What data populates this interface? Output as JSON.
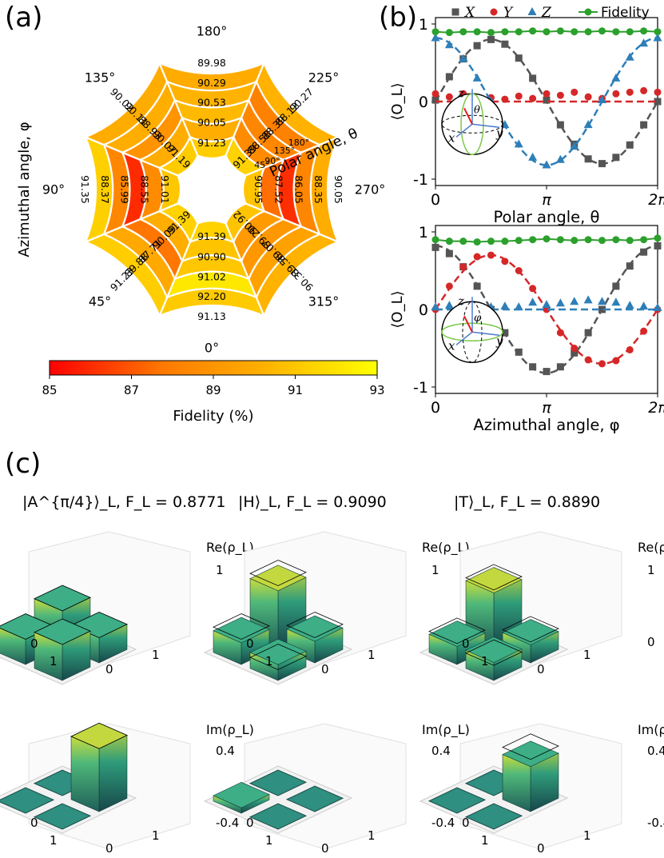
{
  "panel_labels": {
    "a": "(a)",
    "b": "(b)",
    "c": "(c)"
  },
  "chart_data": [
    {
      "type": "heatmap",
      "panel": "a",
      "shape": "polar-ring",
      "rings_outer_to_inner": 4,
      "sectors": 8,
      "azimuth_labels": [
        {
          "text": "0°",
          "deg": 0
        },
        {
          "text": "45°",
          "deg": 45
        },
        {
          "text": "90°",
          "deg": 90
        },
        {
          "text": "135°",
          "deg": 135
        },
        {
          "text": "180°",
          "deg": 180
        },
        {
          "text": "225°",
          "deg": 225
        },
        {
          "text": "270°",
          "deg": 270
        },
        {
          "text": "315°",
          "deg": 315
        }
      ],
      "polar_labels": [
        "45°",
        "90°",
        "135°",
        "180°"
      ],
      "polar_axis_label": "Polar angle, θ",
      "azimuthal_axis_label": "Azimuthal angle, φ",
      "cells_sector_deg": [
        0,
        45,
        90,
        135,
        180,
        225,
        270,
        315
      ],
      "cells": [
        [
          "91.13",
          "91.23",
          "91.35",
          "90.02",
          "89.98",
          "90.27",
          "90.05",
          "90.31"
        ],
        [
          "92.20",
          "89.88",
          "88.37",
          "90.11",
          "90.29",
          "88.12",
          "88.35",
          "89.56"
        ],
        [
          "91.02",
          "87.71",
          "85.99",
          "88.93",
          "90.53",
          "88.39",
          "86.05",
          "89.07"
        ],
        [
          "90.90",
          "90.09",
          "88.55",
          "90.07",
          "90.05",
          "88.58",
          "87.52",
          "89.20"
        ],
        [
          "91.39",
          "91.39",
          "91.01",
          "91.19",
          "91.23",
          "91.39",
          "90.95",
          "90.92"
        ]
      ],
      "colorbar": {
        "label": "Fidelity (%)",
        "ticks": [
          "85",
          "87",
          "89",
          "91",
          "93"
        ],
        "min": 85,
        "max": 93,
        "colors": [
          "#ff0000",
          "#ff7a00",
          "#ffb000",
          "#ffff00"
        ]
      }
    },
    {
      "type": "line",
      "panel": "b-top",
      "xlabel": "Polar angle, θ",
      "ylabel": "⟨O_L⟩",
      "xlim": [
        0,
        6.2832
      ],
      "ylim": [
        -1,
        1
      ],
      "xticks": [
        {
          "v": 0,
          "t": "0"
        },
        {
          "v": 3.1416,
          "t": "π"
        },
        {
          "v": 6.2832,
          "t": "2π"
        }
      ],
      "yticks": [
        {
          "v": -1,
          "t": "-1"
        },
        {
          "v": 0,
          "t": "0"
        },
        {
          "v": 1,
          "t": "1"
        }
      ],
      "x": [
        0,
        0.3927,
        0.7854,
        1.1781,
        1.5708,
        1.9635,
        2.3562,
        2.7489,
        3.1416,
        3.5343,
        3.927,
        4.3197,
        4.7124,
        5.1051,
        5.4978,
        5.8905,
        6.2832
      ],
      "series": [
        {
          "name": "X",
          "color": "#555555",
          "marker": "square",
          "fit": "sin",
          "values": [
            0.02,
            0.32,
            0.55,
            0.72,
            0.8,
            0.74,
            0.56,
            0.3,
            0.02,
            -0.3,
            -0.55,
            -0.74,
            -0.8,
            -0.72,
            -0.56,
            -0.3,
            0.0
          ]
        },
        {
          "name": "Y",
          "color": "#d62728",
          "marker": "circle",
          "fit": "zero",
          "values": [
            0.1,
            0.06,
            0.1,
            0.03,
            0.05,
            0.03,
            0.07,
            0.04,
            0.1,
            0.08,
            0.12,
            0.06,
            0.04,
            0.1,
            0.12,
            0.14,
            0.12
          ]
        },
        {
          "name": "Z",
          "color": "#2e7fb8",
          "marker": "triangle",
          "fit": "cos",
          "values": [
            0.82,
            0.73,
            0.55,
            0.3,
            0.0,
            -0.3,
            -0.55,
            -0.72,
            -0.82,
            -0.75,
            -0.58,
            -0.3,
            0.02,
            0.3,
            0.57,
            0.75,
            0.82
          ]
        },
        {
          "name": "Fidelity",
          "color": "#2ca02c",
          "marker": "circle",
          "fit": "line",
          "values": [
            0.9,
            0.89,
            0.9,
            0.9,
            0.89,
            0.9,
            0.9,
            0.91,
            0.9,
            0.91,
            0.9,
            0.9,
            0.91,
            0.9,
            0.9,
            0.91,
            0.9
          ]
        }
      ],
      "legend": "top",
      "inset": {
        "axes": [
          "z",
          "x",
          "y"
        ],
        "angle": "θ"
      }
    },
    {
      "type": "line",
      "panel": "b-bottom",
      "xlabel": "Azimuthal angle, φ",
      "ylabel": "⟨O_L⟩",
      "xlim": [
        0,
        6.2832
      ],
      "ylim": [
        -1,
        1
      ],
      "xticks": [
        {
          "v": 0,
          "t": "0"
        },
        {
          "v": 3.1416,
          "t": "π"
        },
        {
          "v": 6.2832,
          "t": "2π"
        }
      ],
      "yticks": [
        {
          "v": -1,
          "t": "-1"
        },
        {
          "v": 0,
          "t": "0"
        },
        {
          "v": 1,
          "t": "1"
        }
      ],
      "x": [
        0,
        0.3927,
        0.7854,
        1.1781,
        1.5708,
        1.9635,
        2.3562,
        2.7489,
        3.1416,
        3.5343,
        3.927,
        4.3197,
        4.7124,
        5.1051,
        5.4978,
        5.8905,
        6.2832
      ],
      "series": [
        {
          "name": "X",
          "color": "#555555",
          "marker": "square",
          "fit": "cos",
          "values": [
            0.8,
            0.72,
            0.55,
            0.3,
            0.0,
            -0.3,
            -0.55,
            -0.74,
            -0.8,
            -0.74,
            -0.56,
            -0.3,
            0.0,
            0.3,
            0.56,
            0.74,
            0.82
          ]
        },
        {
          "name": "Y",
          "color": "#d62728",
          "marker": "circle",
          "fit": "sin",
          "values": [
            0.0,
            0.3,
            0.55,
            0.68,
            0.7,
            0.62,
            0.5,
            0.27,
            0.0,
            -0.3,
            -0.5,
            -0.65,
            -0.7,
            -0.66,
            -0.52,
            -0.28,
            0.0
          ]
        },
        {
          "name": "Z",
          "color": "#2e7fb8",
          "marker": "triangle",
          "fit": "zero",
          "values": [
            0.03,
            0.05,
            0.03,
            0.02,
            0.03,
            0.04,
            0.03,
            0.09,
            0.06,
            0.08,
            0.1,
            0.12,
            0.1,
            0.09,
            0.05,
            0.04,
            0.02
          ]
        },
        {
          "name": "Fidelity",
          "color": "#2ca02c",
          "marker": "circle",
          "fit": "line",
          "values": [
            0.9,
            0.88,
            0.88,
            0.87,
            0.88,
            0.88,
            0.89,
            0.9,
            0.91,
            0.9,
            0.89,
            0.9,
            0.89,
            0.9,
            0.89,
            0.9,
            0.92
          ]
        }
      ],
      "inset": {
        "axes": [
          "z",
          "x",
          "y"
        ],
        "angle": "φ"
      }
    },
    {
      "type": "bar",
      "panel": "c",
      "style": "3d-density-matrix",
      "states": [
        {
          "label": "|A^{π/4}⟩_L, F_L = 0.8771",
          "ket": "A",
          "sup": "π/4",
          "fid": "0.8771",
          "re": [
            [
              0.5,
              0.35
            ],
            [
              0.35,
              0.5
            ]
          ],
          "re_ideal": [
            [
              0.5,
              0.35
            ],
            [
              0.35,
              0.5
            ]
          ],
          "im": [
            [
              0.0,
              -0.35
            ],
            [
              0.35,
              0.0
            ]
          ],
          "im_ideal": [
            [
              0.0,
              -0.35
            ],
            [
              0.35,
              0.0
            ]
          ]
        },
        {
          "label": "|H⟩_L, F_L = 0.9090",
          "ket": "H",
          "sup": "",
          "fid": "0.9090",
          "re": [
            [
              0.78,
              0.3
            ],
            [
              0.3,
              0.22
            ]
          ],
          "re_ideal": [
            [
              0.85,
              0.35
            ],
            [
              0.35,
              0.15
            ]
          ],
          "im": [
            [
              0.0,
              0.03
            ],
            [
              -0.03,
              0.0
            ]
          ],
          "im_ideal": [
            [
              0.0,
              0.0
            ],
            [
              0.0,
              0.0
            ]
          ]
        },
        {
          "label": "|T⟩_L, F_L = 0.8890",
          "ket": "T",
          "sup": "",
          "fid": "0.8890",
          "re": [
            [
              0.75,
              0.25
            ],
            [
              0.25,
              0.25
            ]
          ],
          "re_ideal": [
            [
              0.79,
              0.29
            ],
            [
              0.29,
              0.21
            ]
          ],
          "im": [
            [
              0.0,
              -0.25
            ],
            [
              0.25,
              0.0
            ]
          ],
          "im_ideal": [
            [
              0.0,
              -0.29
            ],
            [
              0.29,
              0.0
            ]
          ]
        }
      ],
      "re_label": "Re(ρ_L)",
      "im_label": "Im(ρ_L)",
      "re_zticks": [
        "1",
        "0"
      ],
      "im_zticks": [
        "0.4",
        "-0.4"
      ],
      "basis_ticks": [
        "0",
        "1"
      ]
    }
  ]
}
